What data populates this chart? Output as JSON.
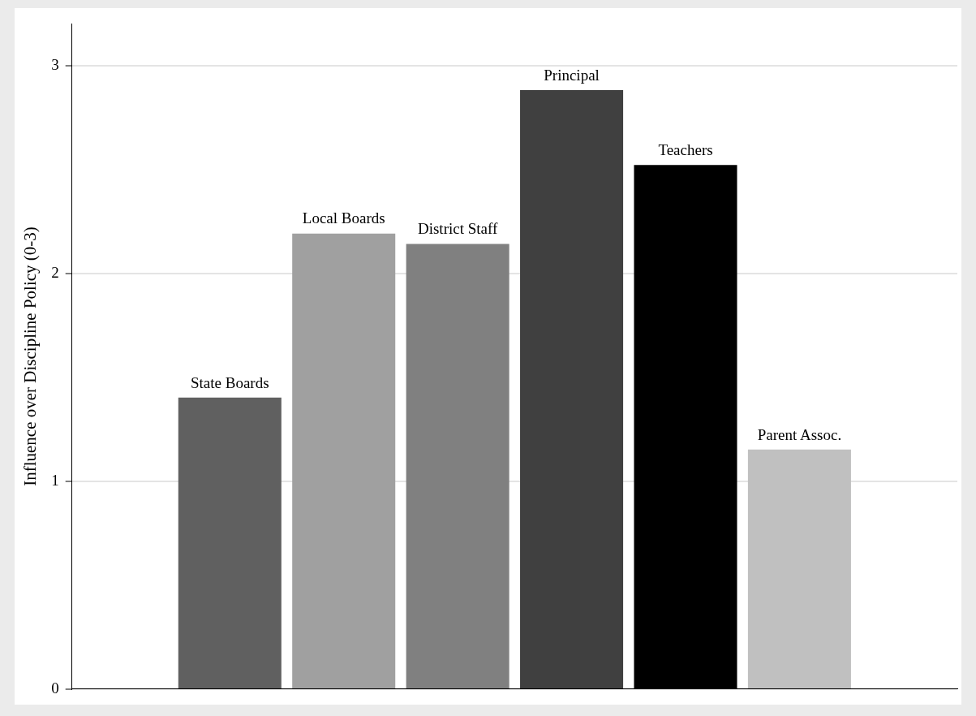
{
  "chart_data": {
    "type": "bar",
    "ylabel": "Influence over Discipline Policy (0-3)",
    "categories": [
      "State Boards",
      "Local Boards",
      "District Staff",
      "Principal",
      "Teachers",
      "Parent Assoc."
    ],
    "values": [
      1.4,
      2.19,
      2.14,
      2.88,
      2.52,
      1.15
    ],
    "colors": [
      "#606060",
      "#a0a0a0",
      "#808080",
      "#404040",
      "#000000",
      "#c0c0c0"
    ],
    "ylim": [
      0,
      3.2
    ],
    "yticks": [
      0,
      1,
      2,
      3
    ],
    "grid": "y",
    "legend": false
  }
}
